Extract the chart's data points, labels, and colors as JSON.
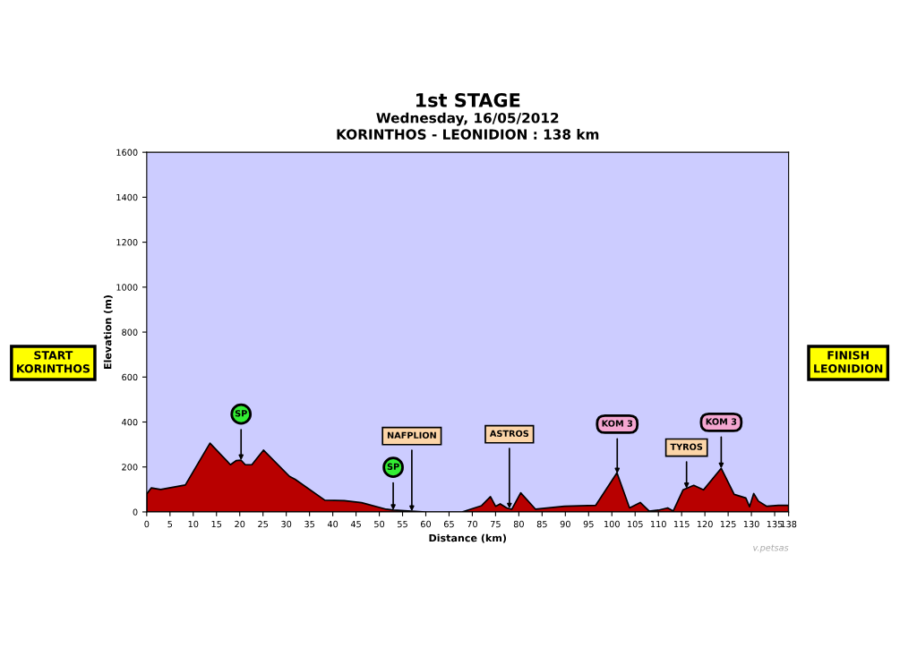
{
  "chart_data": {
    "type": "area",
    "title": "1st STAGE",
    "subtitle": "Wednesday, 16/05/2012\nKORINTHOS - LEONIDION : 138 km",
    "xlabel": "Distance (km)",
    "ylabel": "Elevation (m)",
    "x": [
      0,
      1,
      3,
      8.3,
      13.6,
      18,
      19.2,
      20.3,
      21.2,
      22.6,
      25.1,
      30.7,
      31.9,
      38.3,
      42.5,
      46.2,
      51.5,
      53,
      57,
      60,
      67.8,
      72,
      73.9,
      75,
      76,
      77.4,
      78.5,
      80.4,
      83.6,
      89.8,
      96.5,
      101.1,
      103.8,
      106.1,
      108,
      110,
      112,
      113.2,
      115.3,
      117.6,
      119.7,
      123.5,
      126.3,
      128.8,
      129.6,
      130.5,
      131.5,
      133.3,
      135.8,
      138
    ],
    "series": [
      {
        "color": "#b80000",
        "values": [
          80,
          107,
          100,
          120,
          306,
          210,
          228,
          230,
          210,
          210,
          275,
          158,
          145,
          52,
          50,
          41,
          12,
          8,
          3,
          0,
          0,
          28,
          68,
          25,
          36,
          18,
          12,
          85,
          12,
          25,
          29,
          174,
          18,
          42,
          4,
          8,
          18,
          4,
          98,
          118,
          98,
          194,
          78,
          62,
          23,
          82,
          48,
          25,
          29,
          29
        ]
      }
    ],
    "xlim": [
      0,
      138
    ],
    "xticks": [
      0,
      5,
      10,
      15,
      20,
      25,
      30,
      35,
      40,
      45,
      50,
      55,
      60,
      65,
      70,
      75,
      80,
      85,
      90,
      95,
      100,
      105,
      110,
      115,
      120,
      125,
      130,
      135,
      138
    ],
    "ylim": [
      0,
      1600
    ],
    "yticks": [
      0,
      200,
      400,
      600,
      800,
      1000,
      1200,
      1400,
      1600
    ],
    "grid": false,
    "legend": false,
    "annotations": [
      "SP",
      "SP",
      "NAFPLION",
      "ASTROS",
      "KOM 3",
      "TYROS",
      "KOM 3",
      "START\nKORINTHOS",
      "FINISH\nLEONIDION",
      "v.petsas"
    ]
  }
}
